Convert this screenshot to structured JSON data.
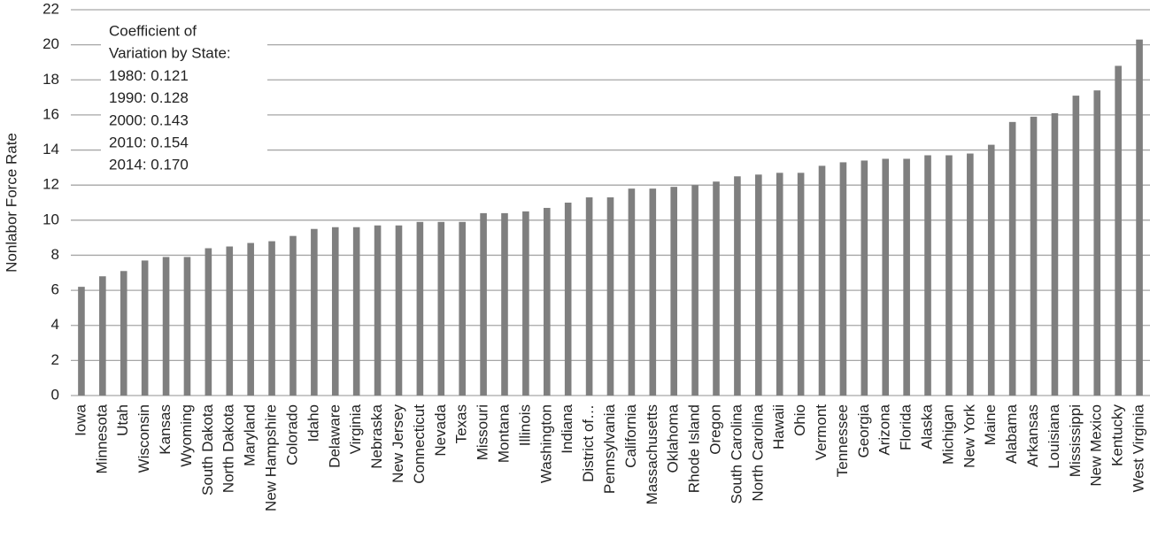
{
  "chart_data": {
    "type": "bar",
    "y_label": "Nonlabor Force Rate",
    "annotation": [
      "Coefficient of",
      "Variation by State:",
      "1980: 0.121",
      "1990: 0.128",
      "2000: 0.143",
      "2010: 0.154",
      "2014: 0.170"
    ],
    "categories": [
      "Iowa",
      "Minnesota",
      "Utah",
      "Wisconsin",
      "Kansas",
      "Wyoming",
      "South Dakota",
      "North Dakota",
      "Maryland",
      "New Hampshire",
      "Colorado",
      "Idaho",
      "Delaware",
      "Virginia",
      "Nebraska",
      "New Jersey",
      "Connecticut",
      "Nevada",
      "Texas",
      "Missouri",
      "Montana",
      "Illinois",
      "Washington",
      "Indiana",
      "District of…",
      "Pennsylvania",
      "California",
      "Massachusetts",
      "Oklahoma",
      "Rhode Island",
      "Oregon",
      "South Carolina",
      "North Carolina",
      "Hawaii",
      "Ohio",
      "Vermont",
      "Tennessee",
      "Georgia",
      "Arizona",
      "Florida",
      "Alaska",
      "Michigan",
      "New York",
      "Maine",
      "Alabama",
      "Arkansas",
      "Louisiana",
      "Mississippi",
      "New Mexico",
      "Kentucky",
      "West Virginia"
    ],
    "values": [
      6.2,
      6.8,
      7.1,
      7.7,
      7.9,
      7.9,
      8.4,
      8.5,
      8.7,
      8.8,
      9.1,
      9.5,
      9.6,
      9.6,
      9.7,
      9.7,
      9.9,
      9.9,
      9.9,
      10.4,
      10.4,
      10.5,
      10.7,
      11.0,
      11.3,
      11.3,
      11.8,
      11.8,
      11.9,
      12.0,
      12.2,
      12.5,
      12.6,
      12.7,
      12.7,
      13.1,
      13.3,
      13.4,
      13.5,
      13.5,
      13.7,
      13.7,
      13.8,
      14.3,
      15.6,
      15.9,
      16.1,
      17.1,
      17.4,
      18.8,
      20.3
    ],
    "color": "#7f7f7f",
    "ylim": [
      0,
      22
    ],
    "yticks": [
      0,
      2,
      4,
      6,
      8,
      10,
      12,
      14,
      16,
      18,
      20,
      22
    ],
    "grid": true
  }
}
